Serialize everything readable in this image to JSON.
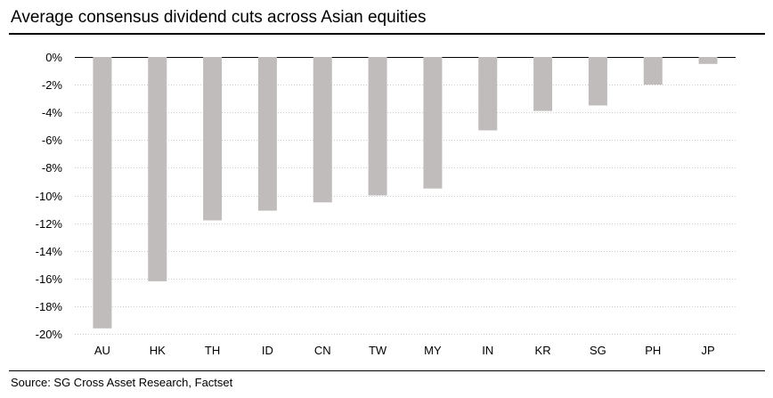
{
  "header": {
    "title": "Average consensus dividend cuts across Asian equities"
  },
  "footer": {
    "source": "Source: SG Cross Asset Research, Factset"
  },
  "colors": {
    "bar": "#c0bcbc",
    "grid": "#cccccc",
    "axis": "#000000"
  },
  "chart_data": {
    "type": "bar",
    "title": "Average consensus dividend cuts across Asian equities",
    "xlabel": "",
    "ylabel": "",
    "categories": [
      "AU",
      "HK",
      "TH",
      "ID",
      "CN",
      "TW",
      "MY",
      "IN",
      "KR",
      "SG",
      "PH",
      "JP"
    ],
    "values": [
      -19.6,
      -16.2,
      -11.8,
      -11.1,
      -10.5,
      -10.0,
      -9.5,
      -5.3,
      -3.9,
      -3.5,
      -2.0,
      -0.5
    ],
    "ylim": [
      -20,
      0
    ],
    "yticks": [
      0,
      -2,
      -4,
      -6,
      -8,
      -10,
      -12,
      -14,
      -16,
      -18,
      -20
    ],
    "ytick_labels": [
      "0%",
      "-2%",
      "-4%",
      "-6%",
      "-8%",
      "-10%",
      "-12%",
      "-14%",
      "-16%",
      "-18%",
      "-20%"
    ],
    "grid": true,
    "gridline_style": "dotted",
    "legend": "none"
  }
}
